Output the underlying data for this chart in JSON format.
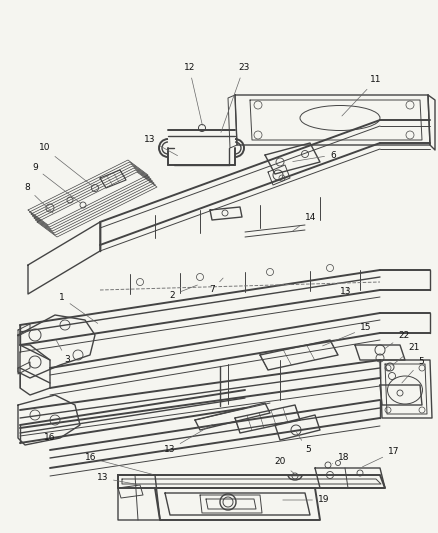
{
  "background_color": "#f5f5f0",
  "line_color": "#444444",
  "line_color_light": "#777777",
  "label_color": "#111111",
  "label_fontsize": 6.5,
  "figsize": [
    4.38,
    5.33
  ],
  "dpi": 100
}
